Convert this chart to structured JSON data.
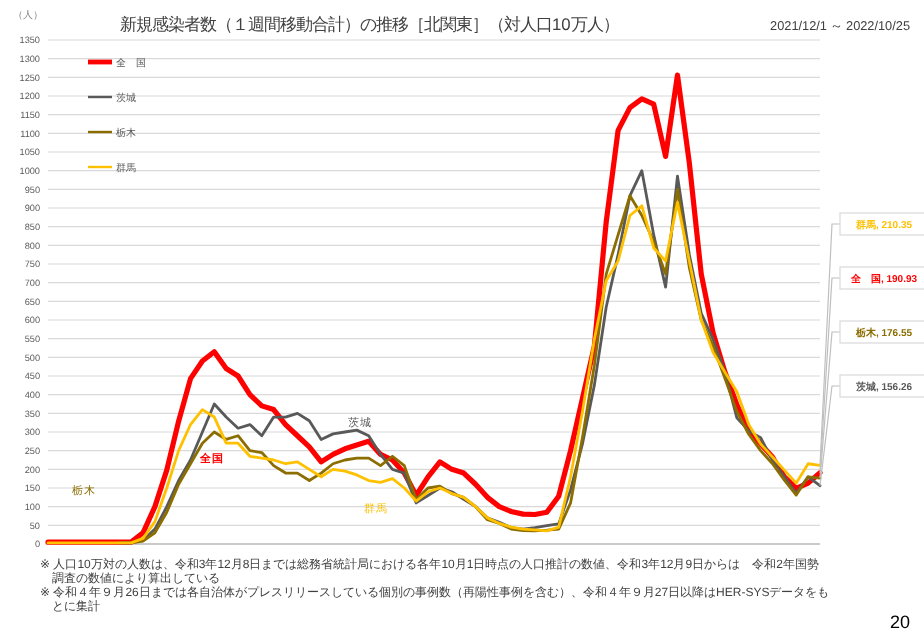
{
  "chart_data": {
    "type": "line",
    "title": "新規感染者数（１週間移動合計）の推移［北関東］（対人口10万人）",
    "subtitle": "2021/12/1 ～ 2022/10/25",
    "ylabel": "（人）",
    "categories": [
      null,
      null,
      null,
      null,
      null,
      null,
      null,
      null,
      null,
      null,
      null,
      null,
      null,
      null,
      null,
      null,
      null,
      null,
      null,
      null,
      null,
      null,
      null,
      null,
      null,
      null,
      null,
      null,
      null,
      null,
      null,
      null,
      null,
      null,
      null,
      null,
      null,
      null,
      null,
      null,
      null,
      null,
      null,
      null,
      null,
      null,
      null,
      null,
      null,
      null,
      null,
      null,
      null,
      null,
      null,
      null,
      null,
      null,
      null,
      null,
      null,
      null,
      null,
      null,
      null,
      null
    ],
    "ylim": [
      0,
      1350
    ],
    "yticks": [
      0,
      50,
      100,
      150,
      200,
      250,
      300,
      350,
      400,
      450,
      500,
      550,
      600,
      650,
      700,
      750,
      800,
      850,
      900,
      950,
      1000,
      1050,
      1100,
      1150,
      1200,
      1250,
      1300,
      1350
    ],
    "grid": "y",
    "legend": "top left",
    "tick_labels": "y",
    "series": [
      {
        "name": "全　国",
        "color": "#ff0000",
        "values": [
          5,
          5,
          5,
          5,
          5,
          5,
          5,
          5,
          30,
          100,
          198,
          329,
          443,
          490,
          515,
          470,
          450,
          400,
          370,
          360,
          320,
          290,
          260,
          220,
          240,
          255,
          265,
          275,
          240,
          225,
          190,
          130,
          180,
          220,
          200,
          190,
          160,
          125,
          100,
          87,
          80,
          79,
          85,
          128,
          250,
          390,
          530,
          863,
          1108,
          1169,
          1192,
          1178,
          1038,
          1256,
          1020,
          723,
          565,
          460,
          373,
          303,
          268,
          233,
          180,
          149,
          163,
          190.93
        ]
      },
      {
        "name": "茨城",
        "color": "#595959",
        "values": [
          null,
          null,
          null,
          null,
          null,
          null,
          3,
          3,
          10,
          40,
          100,
          170,
          225,
          300,
          375,
          340,
          310,
          320,
          290,
          340,
          340,
          350,
          330,
          280,
          295,
          300,
          305,
          290,
          240,
          200,
          190,
          110,
          130,
          150,
          140,
          120,
          100,
          70,
          58,
          44,
          40,
          44,
          49,
          54,
          145,
          268,
          425,
          635,
          775,
          933,
          1000,
          828,
          688,
          985,
          775,
          618,
          548,
          460,
          338,
          303,
          285,
          224,
          180,
          136,
          180,
          156.26
        ]
      },
      {
        "name": "栃木",
        "color": "#8c6d00",
        "values": [
          null,
          null,
          null,
          null,
          null,
          null,
          3,
          3,
          8,
          30,
          85,
          160,
          215,
          270,
          300,
          280,
          290,
          250,
          245,
          210,
          190,
          190,
          170,
          190,
          215,
          225,
          230,
          230,
          210,
          235,
          210,
          120,
          150,
          155,
          135,
          125,
          100,
          65,
          55,
          40,
          36,
          35,
          37,
          40,
          110,
          285,
          478,
          723,
          828,
          933,
          880,
          810,
          723,
          950,
          740,
          600,
          530,
          443,
          355,
          294,
          250,
          215,
          171,
          131,
          180,
          176.55
        ]
      },
      {
        "name": "群馬",
        "color": "#ffc000",
        "values": [
          3,
          3,
          3,
          3,
          3,
          3,
          3,
          3,
          15,
          60,
          150,
          250,
          320,
          360,
          340,
          270,
          270,
          235,
          230,
          225,
          215,
          220,
          200,
          180,
          200,
          195,
          185,
          170,
          165,
          175,
          150,
          115,
          140,
          150,
          135,
          125,
          100,
          70,
          55,
          45,
          40,
          38,
          35,
          45,
          180,
          355,
          548,
          705,
          758,
          880,
          906,
          793,
          758,
          915,
          758,
          600,
          513,
          460,
          408,
          320,
          268,
          233,
          198,
          163,
          215,
          210.35
        ]
      }
    ],
    "annotations": [
      "茨城",
      "全国",
      "栃木",
      "群馬",
      "群馬, 210.35",
      "全　国, 190.93",
      "栃木, 176.55",
      "茨城, 156.26",
      "※ 人口10万対の人数は、令和3年12月8日までは総務省統計局における各年10月1日時点の人口推計の数値、令和3年12月9日からは　令和2年国勢調査の数値により算出している",
      "※ 令和４年９月26日までは各自治体がプレスリリースしている個別の事例数（再陽性事例を含む）、令和４年９月27日以降はHER-SYSデータをもとに集計",
      "20"
    ]
  }
}
